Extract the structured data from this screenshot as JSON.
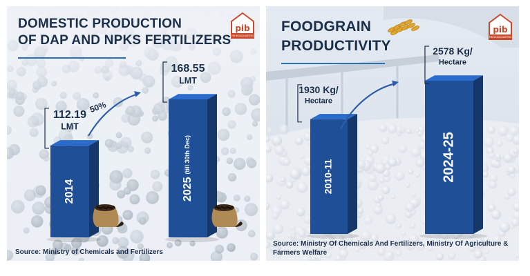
{
  "panels": [
    {
      "title_line1": "DOMESTIC PRODUCTION",
      "title_line2": "OF DAP AND NPKS FERTILIZERS",
      "source": "Source: Ministry of Chemicals and Fertilizers",
      "logo_text": "pib",
      "logo_sub": "PIB HEADQUARTERS"
    },
    {
      "title_line1": "FOODGRAIN",
      "title_line2": "PRODUCTIVITY",
      "source": "Source: Ministry Of Chemicals And Fertilizers, Ministry Of Agriculture & Farmers Welfare",
      "logo_text": "pib",
      "logo_sub": "PIB HEADQUARTERS"
    }
  ],
  "chart_data": [
    {
      "type": "bar",
      "title": "DOMESTIC PRODUCTION OF DAP AND NPKS FERTILIZERS",
      "categories": [
        "2014",
        "2025"
      ],
      "category_notes": [
        "",
        "(till 30th Dec)"
      ],
      "values": [
        112.19,
        168.55
      ],
      "value_labels": [
        "112.19",
        "168.55"
      ],
      "unit": "LMT",
      "growth_label": "50%",
      "bar_color": "#1f4f96",
      "icons": [
        "fertilizer-sack-icon",
        "fertilizer-sack-icon"
      ]
    },
    {
      "type": "bar",
      "title": "FOODGRAIN PRODUCTIVITY",
      "categories": [
        "2010-11",
        "2024-25"
      ],
      "values": [
        1930,
        2578
      ],
      "value_labels": [
        "1930 Kg/",
        "2578 Kg/"
      ],
      "unit": "Hectare",
      "bar_color": "#1f4f96",
      "icons": [
        "wheat-grain-icon"
      ]
    }
  ]
}
